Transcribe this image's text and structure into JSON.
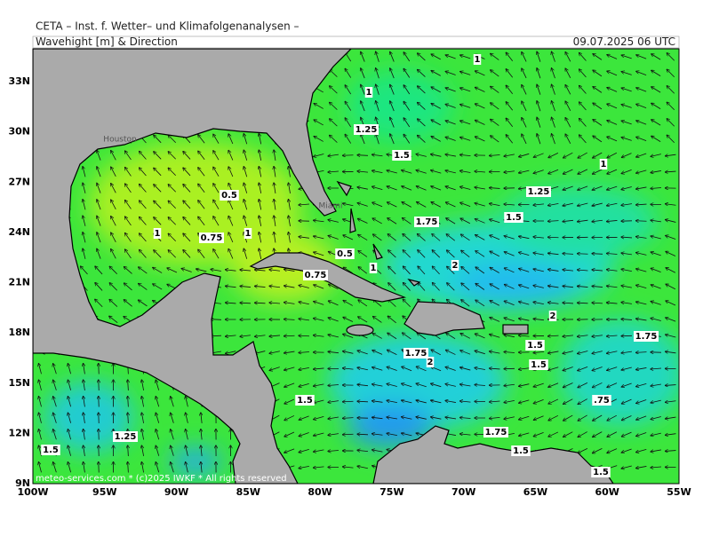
{
  "header": {
    "institute": "CETA – Inst. f. Wetter– und Klimafolgenanalysen –",
    "title": "Wavehight [m] & Direction",
    "date": "09.07.2025 06 UTC"
  },
  "axes": {
    "longitude": [
      "100W",
      "95W",
      "90W",
      "85W",
      "80W",
      "75W",
      "70W",
      "65W",
      "60W",
      "55W"
    ],
    "latitude": [
      "33N",
      "30N",
      "27N",
      "24N",
      "21N",
      "18N",
      "15N",
      "12N",
      "9N"
    ]
  },
  "contour_labels": [
    "1",
    "1",
    "1.25",
    "1.5",
    "1",
    "0.5",
    "1.25",
    "1.75",
    "1.5",
    "1",
    "0.75",
    "1",
    "0.5",
    "1",
    "2",
    "0.75",
    "2",
    "1.5",
    "1.75",
    "1.75",
    "2",
    "1.5",
    "1.5",
    ".75",
    "1.75",
    "1.25",
    "1.5",
    "1.5",
    "1.5"
  ],
  "cities": [
    "Houston",
    "Miami"
  ],
  "footer": "meteo-services.com * (c)2025 IWKF * All rights reserved"
}
